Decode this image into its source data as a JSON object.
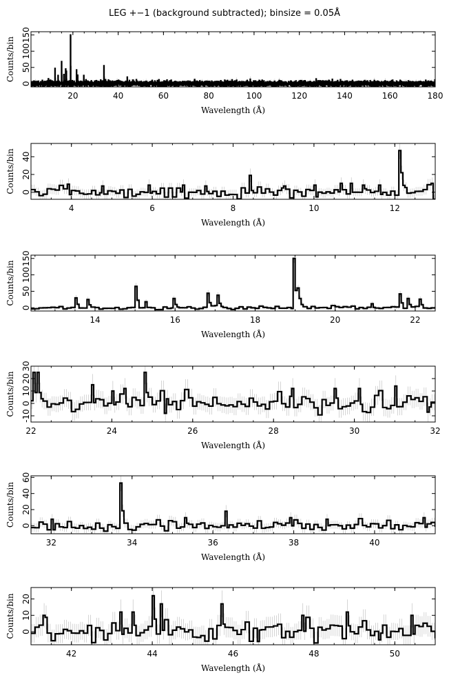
{
  "chart_data": {
    "title": "LEG +−1 (background subtracted); binsize = 0.05Å",
    "panels": [
      {
        "type": "line",
        "xlabel": "Wavelength (Å)",
        "ylabel": "Counts/bin",
        "xlim": [
          1.5,
          180
        ],
        "ylim": [
          -10,
          160
        ],
        "xticks": [
          20,
          40,
          60,
          80,
          100,
          120,
          140,
          160,
          180
        ],
        "yticks": [
          0,
          50,
          100,
          150
        ],
        "noise_sigma": 4,
        "peaks": [
          [
            6.5,
            10
          ],
          [
            9.2,
            15
          ],
          [
            12.1,
            47
          ],
          [
            13.45,
            25
          ],
          [
            15.0,
            68
          ],
          [
            16.0,
            28
          ],
          [
            16.8,
            45
          ],
          [
            17.1,
            38
          ],
          [
            18.97,
            150
          ],
          [
            21.6,
            42
          ],
          [
            22.1,
            26
          ],
          [
            24.78,
            25
          ],
          [
            33.7,
            55
          ],
          [
            44.0,
            20
          ],
          [
            48.0,
            12
          ],
          [
            55.0,
            10
          ],
          [
            100.0,
            8
          ],
          [
            133.0,
            10
          ],
          [
            150.0,
            8
          ],
          [
            165.0,
            7
          ]
        ]
      },
      {
        "type": "line",
        "xlabel": "Wavelength (Å)",
        "ylabel": "Counts/bin",
        "xlim": [
          3,
          13
        ],
        "ylim": [
          -8,
          55
        ],
        "xticks": [
          4,
          6,
          8,
          10,
          12
        ],
        "yticks": [
          0,
          20,
          40
        ],
        "noise_sigma": 3,
        "peaks": [
          [
            3.9,
            9
          ],
          [
            4.75,
            7
          ],
          [
            5.9,
            8
          ],
          [
            6.75,
            8
          ],
          [
            7.3,
            7
          ],
          [
            8.42,
            19
          ],
          [
            9.25,
            7
          ],
          [
            10.0,
            8
          ],
          [
            10.65,
            10
          ],
          [
            10.9,
            10
          ],
          [
            11.2,
            8
          ],
          [
            11.6,
            8
          ],
          [
            12.1,
            47
          ],
          [
            12.15,
            22
          ],
          [
            12.9,
            10
          ]
        ]
      },
      {
        "type": "line",
        "xlabel": "Wavelength (Å)",
        "ylabel": "Counts/bin",
        "xlim": [
          12.4,
          22.5
        ],
        "ylim": [
          -10,
          160
        ],
        "xticks": [
          14,
          16,
          18,
          20,
          22
        ],
        "yticks": [
          0,
          50,
          100,
          150
        ],
        "noise_sigma": 3,
        "peaks": [
          [
            13.5,
            30
          ],
          [
            13.8,
            25
          ],
          [
            15.0,
            65
          ],
          [
            15.25,
            18
          ],
          [
            15.95,
            28
          ],
          [
            16.78,
            44
          ],
          [
            17.06,
            38
          ],
          [
            18.97,
            150
          ],
          [
            19.05,
            60
          ],
          [
            19.1,
            28
          ],
          [
            20.9,
            12
          ],
          [
            21.6,
            42
          ],
          [
            21.8,
            28
          ],
          [
            22.1,
            26
          ]
        ]
      },
      {
        "type": "line",
        "xlabel": "Wavelength (Å)",
        "ylabel": "Counts/bin",
        "xlim": [
          22,
          32
        ],
        "ylim": [
          -15,
          30
        ],
        "xticks": [
          22,
          24,
          26,
          28,
          30,
          32
        ],
        "yticks": [
          -10,
          0,
          10,
          20,
          30
        ],
        "noise_sigma": 4,
        "peaks": [
          [
            22.05,
            25
          ],
          [
            22.15,
            25
          ],
          [
            23.5,
            15
          ],
          [
            24.0,
            10
          ],
          [
            24.3,
            12
          ],
          [
            24.78,
            25
          ],
          [
            25.3,
            -8
          ],
          [
            28.45,
            12
          ],
          [
            29.5,
            12
          ],
          [
            30.1,
            12
          ],
          [
            31.0,
            14
          ],
          [
            31.8,
            -7
          ]
        ]
      },
      {
        "type": "line",
        "xlabel": "Wavelength (Å)",
        "ylabel": "Counts/bin",
        "xlim": [
          31.5,
          41.5
        ],
        "ylim": [
          -10,
          62
        ],
        "xticks": [
          32,
          34,
          36,
          38,
          40
        ],
        "yticks": [
          0,
          20,
          40,
          60
        ],
        "noise_sigma": 3,
        "peaks": [
          [
            32.0,
            8
          ],
          [
            33.7,
            53
          ],
          [
            35.3,
            10
          ],
          [
            36.3,
            18
          ],
          [
            37.9,
            10
          ],
          [
            38.8,
            8
          ],
          [
            41.2,
            10
          ]
        ]
      },
      {
        "type": "line",
        "xlabel": "Wavelength (Å)",
        "ylabel": "Counts/bin",
        "xlim": [
          41,
          51
        ],
        "ylim": [
          -8,
          27
        ],
        "xticks": [
          42,
          44,
          46,
          48,
          50
        ],
        "yticks": [
          0,
          10,
          20
        ],
        "noise_sigma": 3.5,
        "peaks": [
          [
            41.3,
            10
          ],
          [
            43.2,
            12
          ],
          [
            43.5,
            12
          ],
          [
            44.0,
            22
          ],
          [
            44.2,
            17
          ],
          [
            45.7,
            17
          ],
          [
            46.6,
            -6
          ],
          [
            47.7,
            10
          ],
          [
            48.8,
            12
          ],
          [
            49.6,
            -5
          ],
          [
            50.4,
            10
          ]
        ]
      }
    ]
  }
}
